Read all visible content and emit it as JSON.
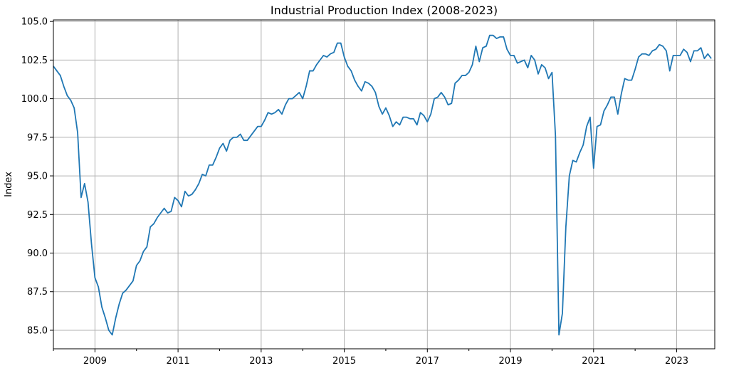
{
  "chart_data": {
    "type": "line",
    "title": "Industrial Production Index (2008-2023)",
    "xlabel": "",
    "ylabel": "Index",
    "xlim": [
      "2008-01",
      "2023-12"
    ],
    "ylim": [
      83.8,
      105.1
    ],
    "grid": true,
    "line_color": "#1f77b4",
    "yticks": [
      85.0,
      87.5,
      90.0,
      92.5,
      95.0,
      97.5,
      100.0,
      102.5,
      105.0
    ],
    "ytick_labels": [
      "85.0",
      "87.5",
      "90.0",
      "92.5",
      "95.0",
      "97.5",
      "100.0",
      "102.5",
      "105.0"
    ],
    "xticks": [
      "2009-01",
      "2011-01",
      "2013-01",
      "2015-01",
      "2017-01",
      "2019-01",
      "2021-01",
      "2023-01"
    ],
    "xtick_labels": [
      "2009",
      "2011",
      "2013",
      "2015",
      "2017",
      "2019",
      "2021",
      "2023"
    ],
    "series": [
      {
        "start": "2008-01",
        "values": [
          102.1,
          101.8,
          101.5,
          100.8,
          100.2,
          99.9,
          99.4,
          97.8,
          93.6,
          94.5,
          93.3,
          90.6,
          88.4,
          87.8,
          86.5,
          85.8,
          85.0,
          84.7,
          85.8,
          86.7,
          87.4,
          87.6,
          87.9,
          88.2,
          89.2,
          89.5,
          90.1,
          90.4,
          91.7,
          91.9,
          92.3,
          92.6,
          92.9,
          92.6,
          92.7,
          93.6,
          93.4,
          93.0,
          94.0,
          93.7,
          93.8,
          94.1,
          94.5,
          95.1,
          95.0,
          95.7,
          95.7,
          96.2,
          96.8,
          97.1,
          96.6,
          97.3,
          97.5,
          97.5,
          97.7,
          97.3,
          97.3,
          97.6,
          97.9,
          98.2,
          98.2,
          98.6,
          99.1,
          99.0,
          99.1,
          99.3,
          99.0,
          99.6,
          100.0,
          100.0,
          100.2,
          100.4,
          100.0,
          100.8,
          101.8,
          101.8,
          102.2,
          102.5,
          102.8,
          102.7,
          102.9,
          103.0,
          103.6,
          103.6,
          102.7,
          102.1,
          101.8,
          101.2,
          100.8,
          100.5,
          101.1,
          101.0,
          100.8,
          100.4,
          99.5,
          99.0,
          99.4,
          98.9,
          98.2,
          98.5,
          98.3,
          98.8,
          98.8,
          98.7,
          98.7,
          98.3,
          99.1,
          98.9,
          98.5,
          99.0,
          100.0,
          100.1,
          100.4,
          100.1,
          99.6,
          99.7,
          101.0,
          101.2,
          101.5,
          101.5,
          101.7,
          102.2,
          103.4,
          102.4,
          103.3,
          103.4,
          104.1,
          104.1,
          103.9,
          104.0,
          104.0,
          103.2,
          102.8,
          102.8,
          102.3,
          102.4,
          102.5,
          102.0,
          102.8,
          102.5,
          101.6,
          102.2,
          102.0,
          101.3,
          101.7,
          97.6,
          84.7,
          86.1,
          91.7,
          95.0,
          96.0,
          95.9,
          96.5,
          97.0,
          98.2,
          98.8,
          95.5,
          98.2,
          98.3,
          99.2,
          99.6,
          100.1,
          100.1,
          99.0,
          100.3,
          101.3,
          101.2,
          101.2,
          101.9,
          102.7,
          102.9,
          102.9,
          102.8,
          103.1,
          103.2,
          103.5,
          103.4,
          103.1,
          101.8,
          102.8,
          102.8,
          102.8,
          103.2,
          103.0,
          102.4,
          103.1,
          103.1,
          103.3,
          102.6,
          102.9,
          102.6
        ]
      }
    ]
  }
}
